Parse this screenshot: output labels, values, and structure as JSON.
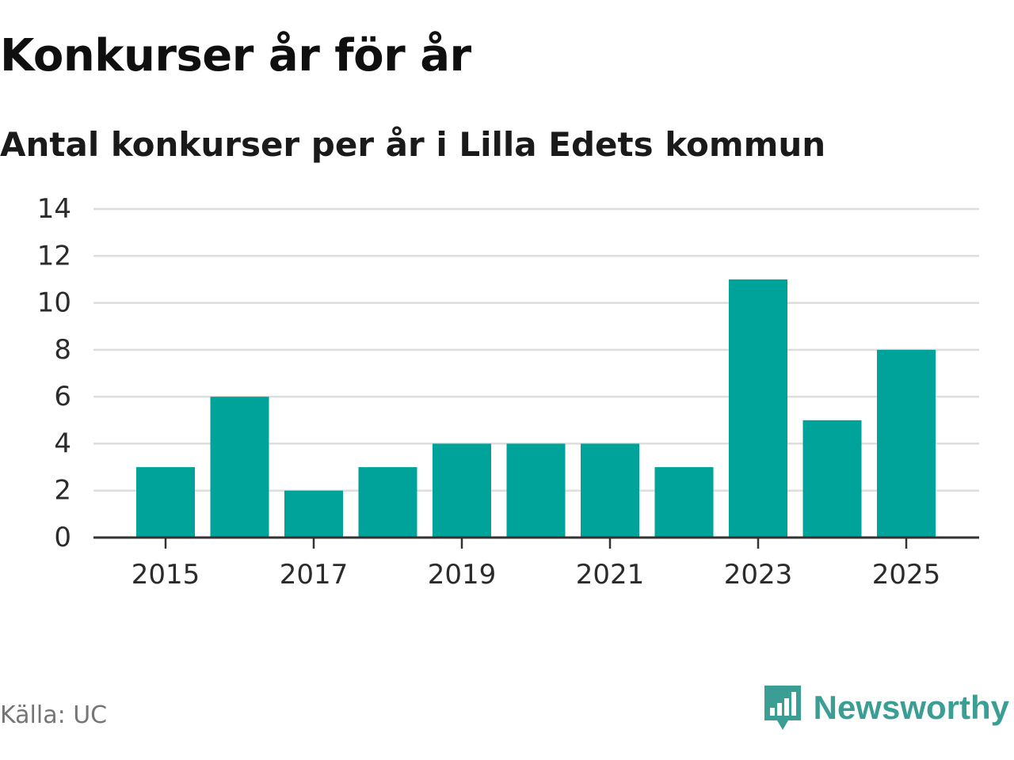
{
  "header": {
    "title": "Konkurser år för år",
    "subtitle": "Antal konkurser per år i Lilla Edets kommun"
  },
  "footer": {
    "source": "Källa: UC",
    "brand": "Newsworthy"
  },
  "colors": {
    "bar": "#00a39a",
    "grid": "#dddddd",
    "axis": "#333333",
    "brand": "#3a9e94",
    "source_text": "#757575"
  },
  "icons": {
    "brand_logo": "newsworthy-logo-icon"
  },
  "chart_data": {
    "type": "bar",
    "title": "Konkurser år för år",
    "subtitle": "Antal konkurser per år i Lilla Edets kommun",
    "categories": [
      "2015",
      "2016",
      "2017",
      "2018",
      "2019",
      "2020",
      "2021",
      "2022",
      "2023",
      "2024",
      "2025"
    ],
    "values": [
      3,
      6,
      2,
      3,
      4,
      4,
      4,
      3,
      11,
      5,
      8
    ],
    "xtick_labels": [
      "2015",
      "2017",
      "2019",
      "2021",
      "2023",
      "2025"
    ],
    "ylim": [
      0,
      14
    ],
    "yticks": [
      0,
      2,
      4,
      6,
      8,
      10,
      12,
      14
    ],
    "grid": true,
    "legend": "none",
    "xlabel": "",
    "ylabel": ""
  }
}
